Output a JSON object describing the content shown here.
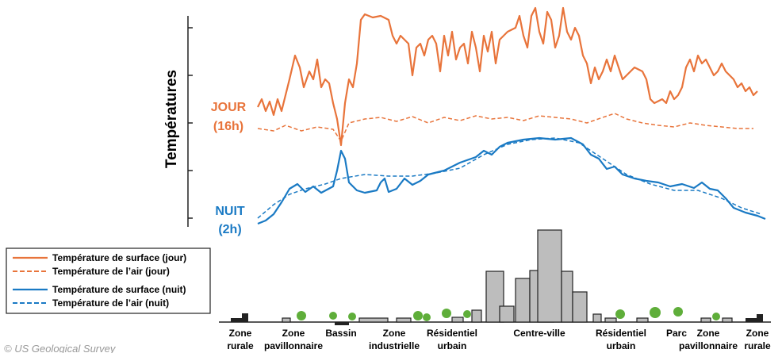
{
  "axis_label": "Températures",
  "day_label": {
    "line1": "JOUR",
    "line2": "(16h)"
  },
  "night_label": {
    "line1": "NUIT",
    "line2": "(2h)"
  },
  "legend": [
    "Température de surface (jour)",
    "Température de l’air (jour)",
    "Température de surface (nuit)",
    "Température de l’air (nuit)"
  ],
  "zones": [
    [
      "Zone",
      "rurale"
    ],
    [
      "Zone",
      "pavillonnaire"
    ],
    [
      "Bassin"
    ],
    [
      "Zone",
      "industrielle"
    ],
    [
      "Résidentiel",
      "urbain"
    ],
    [
      "Centre-ville"
    ],
    [
      "Résidentiel",
      "urbain"
    ],
    [
      "Parc"
    ],
    [
      "Zone",
      "pavillonnaire"
    ],
    [
      "Zone",
      "rurale"
    ]
  ],
  "credit": "© US Geological Survey"
}
